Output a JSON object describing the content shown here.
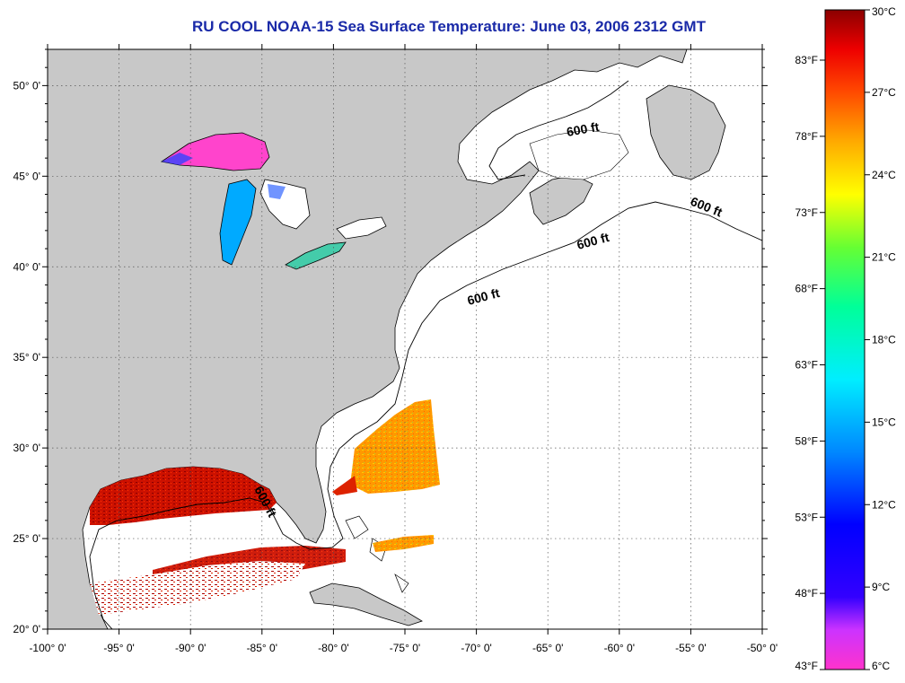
{
  "title": "RU COOL  NOAA-15  Sea Surface Temperature:  June 03, 2006 2312 GMT",
  "colors": {
    "title": "#1a2aa8",
    "land": "#c8c8c8",
    "ocean": "#ffffff"
  },
  "map": {
    "lon_range": [
      -100,
      -50
    ],
    "lat_range": [
      20,
      52
    ],
    "lon_ticks": [
      "-100° 0'",
      "-95° 0'",
      "-90° 0'",
      "-85° 0'",
      "-80° 0'",
      "-75° 0'",
      "-70° 0'",
      "-65° 0'",
      "-60° 0'",
      "-55° 0'",
      "-50° 0'"
    ],
    "lat_ticks": [
      "20° 0'",
      "25° 0'",
      "30° 0'",
      "35° 0'",
      "40° 0'",
      "45° 0'",
      "50° 0'"
    ],
    "grid": "dotted",
    "contour_labels": [
      "600 ft",
      "600 ft",
      "600 ft",
      "600 ft",
      "600 ft"
    ]
  },
  "colorbar": {
    "celsius": [
      "30°C",
      "27°C",
      "24°C",
      "21°C",
      "18°C",
      "15°C",
      "12°C",
      "9°C",
      "6°C"
    ],
    "fahrenheit": [
      "83°F",
      "78°F",
      "73°F",
      "68°F",
      "63°F",
      "58°F",
      "53°F",
      "48°F",
      "43°F"
    ]
  }
}
